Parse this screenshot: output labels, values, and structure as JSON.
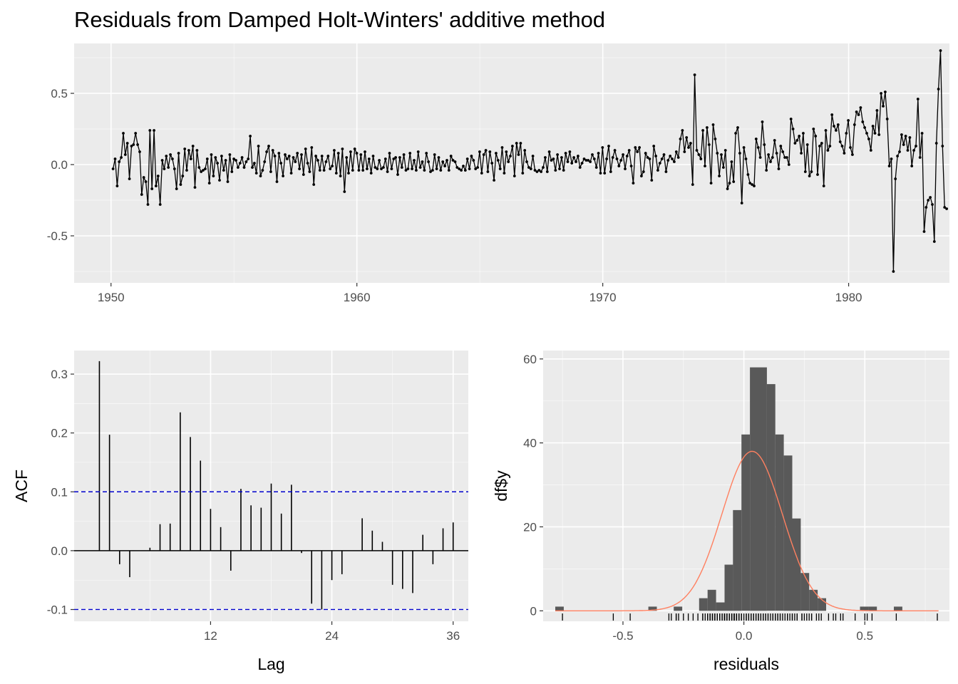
{
  "title": "Residuals from Damped Holt-Winters' additive method",
  "chart_data": [
    {
      "type": "line",
      "title": "Residuals from Damped Holt-Winters' additive method",
      "xlabel": "",
      "ylabel": "",
      "x_start": 1950.083,
      "x_step": 0.0833,
      "xlim": [
        1948.5,
        1984.1
      ],
      "ylim": [
        -0.83,
        0.85
      ],
      "x_ticks": [
        1950,
        1960,
        1970,
        1980
      ],
      "x_tick_labels": [
        "1950",
        "1960",
        "1970",
        "1980"
      ],
      "y_ticks": [
        -0.5,
        0,
        0.5
      ],
      "y_tick_labels": [
        "-0.5",
        "0.0",
        "0.5"
      ],
      "grid": true,
      "values": [
        -0.03,
        0.04,
        -0.15,
        0.02,
        0.05,
        0.22,
        0.07,
        0.15,
        -0.1,
        0.13,
        0.14,
        0.22,
        0.14,
        0.09,
        -0.21,
        -0.09,
        -0.12,
        -0.28,
        0.24,
        -0.17,
        0.24,
        -0.15,
        -0.08,
        -0.28,
        0.03,
        -0.03,
        0.06,
        -0.02,
        0.07,
        0.04,
        -0.03,
        -0.17,
        0.08,
        -0.14,
        -0.08,
        0.11,
        -0.04,
        0.1,
        0.04,
        0.13,
        -0.16,
        0.1,
        -0.02,
        -0.05,
        -0.04,
        -0.03,
        0.04,
        -0.13,
        0.07,
        -0.08,
        0.05,
        0.01,
        -0.11,
        0.06,
        -0.04,
        0.03,
        -0.12,
        0.07,
        -0.05,
        0.04,
        0.03,
        -0.02,
        0.01,
        0.05,
        -0.02,
        0.02,
        0.04,
        0.2,
        -0.02,
        0.01,
        -0.06,
        0.13,
        -0.08,
        -0.04,
        0.02,
        0.09,
        0.13,
        -0.05,
        0.1,
        0.06,
        -0.12,
        0.08,
        0.01,
        -0.08,
        0.07,
        0.04,
        0.06,
        -0.06,
        0.05,
        0.02,
        0.08,
        -0.03,
        0.07,
        -0.07,
        0.11,
        0.01,
        -0.05,
        0.12,
        -0.14,
        0.06,
        0.03,
        -0.04,
        0.06,
        -0.04,
        0.02,
        0.06,
        -0.03,
        -0.01,
        0.1,
        -0.06,
        0.08,
        -0.08,
        0.11,
        -0.19,
        0.05,
        -0.06,
        0.09,
        -0.04,
        0.11,
        0.08,
        -0.04,
        0.07,
        -0.04,
        0.09,
        -0.03,
        0.04,
        -0.06,
        0.06,
        -0.02,
        -0.03,
        0.03,
        -0.03,
        -0.02,
        0.04,
        -0.05,
        0.08,
        -0.03,
        0.04,
        0.05,
        -0.07,
        0.05,
        -0.02,
        0.07,
        -0.04,
        -0.03,
        0.08,
        -0.03,
        0.03,
        -0.04,
        0.09,
        -0.02,
        0.02,
        -0.04,
        0.08,
        0.02,
        -0.05,
        -0.04,
        0.07,
        -0.03,
        0.05,
        -0.04,
        0.02,
        -0.01,
        0.03,
        -0.04,
        0.06,
        0.03,
        0.02,
        -0.02,
        -0.03,
        -0.04,
        -0.01,
        -0.04,
        0.04,
        -0.03,
        0.06,
        0.03,
        -0.03,
        -0.02,
        0.09,
        -0.06,
        0.07,
        0.1,
        -0.05,
        0.09,
        0.01,
        -0.11,
        0.08,
        0.03,
        -0.03,
        0.12,
        -0.06,
        0.09,
        0.02,
        0.06,
        0.13,
        -0.08,
        0.15,
        0.07,
        0.15,
        -0.06,
        0.1,
        0.02,
        -0.02,
        -0.03,
        0.06,
        -0.04,
        -0.05,
        -0.04,
        -0.05,
        -0.02,
        0.05,
        -0.05,
        0.09,
        0.03,
        0.04,
        -0.04,
        0.07,
        -0.03,
        0.05,
        -0.04,
        0.08,
        0.02,
        0.09,
        0.01,
        0.05,
        0.02,
        0.06,
        -0.02,
        0.01,
        0.04,
        0.03,
        0.03,
        0.02,
        0.07,
        0.04,
        -0.02,
        0.08,
        -0.06,
        0.12,
        -0.06,
        0.04,
        0.13,
        -0.05,
        0.05,
        0.1,
        0.04,
        -0.01,
        0.03,
        0.07,
        -0.03,
        0.06,
        0.1,
        -0.01,
        -0.13,
        0.12,
        0.09,
        0.12,
        -0.08,
        -0.05,
        0.08,
        0.05,
        0.04,
        -0.11,
        0.13,
        0.06,
        -0.04,
        0.01,
        0.04,
        0.07,
        -0.05,
        0.03,
        0.06,
        0.04,
        0.02,
        0.09,
        0.05,
        0.18,
        0.24,
        0.09,
        0.19,
        0.12,
        0.15,
        -0.14,
        0.63,
        0.1,
        0.07,
        0.04,
        0.24,
        -0.01,
        0.26,
        0.14,
        -0.13,
        0.28,
        0.18,
        0.08,
        -0.08,
        0.07,
        -0.02,
        0.1,
        -0.17,
        -0.13,
        0.02,
        -0.12,
        0.22,
        0.26,
        0.08,
        -0.27,
        0.12,
        0.04,
        -0.07,
        -0.13,
        -0.14,
        -0.15,
        0.18,
        0.12,
        0.05,
        0.3,
        0.14,
        -0.04,
        0.07,
        0.02,
        0.05,
        0.17,
        0.08,
        -0.03,
        0.13,
        0.09,
        0.05,
        0.05,
        0.0,
        0.32,
        0.25,
        0.15,
        0.17,
        0.2,
        0.08,
        0.22,
        -0.05,
        0.14,
        -0.08,
        -0.05,
        0.25,
        0.2,
        -0.07,
        0.13,
        0.15,
        -0.15,
        0.24,
        0.1,
        0.13,
        0.35,
        0.27,
        0.24,
        0.28,
        0.16,
        0.13,
        0.08,
        0.22,
        0.31,
        0.12,
        0.07,
        0.28,
        0.37,
        0.35,
        0.4,
        0.3,
        0.26,
        0.22,
        0.18,
        0.1,
        0.27,
        0.22,
        0.38,
        0.21,
        0.5,
        0.41,
        0.51,
        0.32,
        -0.01,
        0.04,
        -0.75,
        -0.1,
        0.06,
        0.09,
        0.21,
        0.14,
        0.2,
        0.1,
        0.19,
        -0.01,
        0.1,
        0.13,
        0.46,
        0.05,
        0.22,
        -0.47,
        -0.3,
        -0.25,
        -0.23,
        -0.28,
        -0.54,
        0.15,
        0.53,
        0.8,
        0.13,
        -0.3,
        -0.31
      ]
    },
    {
      "type": "bar",
      "title": "",
      "xlabel": "Lag",
      "ylabel": "ACF",
      "lags": [
        1,
        2,
        3,
        4,
        5,
        6,
        7,
        8,
        9,
        10,
        11,
        12,
        13,
        14,
        15,
        16,
        17,
        18,
        19,
        20,
        21,
        22,
        23,
        24,
        25,
        26,
        27,
        28,
        29,
        30,
        31,
        32,
        33,
        34,
        35,
        36
      ],
      "values": [
        0.322,
        0.197,
        -0.023,
        -0.045,
        0.0,
        0.005,
        0.045,
        0.046,
        0.235,
        0.193,
        0.153,
        0.071,
        0.04,
        -0.034,
        0.105,
        0.077,
        0.073,
        0.114,
        0.063,
        0.112,
        -0.004,
        -0.09,
        -0.1,
        -0.05,
        -0.04,
        0.0,
        0.055,
        0.034,
        0.015,
        -0.058,
        -0.065,
        -0.072,
        0.027,
        -0.023,
        0.038,
        0.048
      ],
      "confidence_limit": 0.1,
      "xlim": [
        -1.5,
        37.5
      ],
      "ylim": [
        -0.12,
        0.34
      ],
      "x_ticks": [
        12,
        24,
        36
      ],
      "x_tick_labels": [
        "12",
        "24",
        "36"
      ],
      "y_ticks": [
        -0.1,
        0.0,
        0.1,
        0.2,
        0.3
      ],
      "y_tick_labels": [
        "-0.1",
        "0.0",
        "0.1",
        "0.2",
        "0.3"
      ],
      "grid": true
    },
    {
      "type": "bar",
      "title": "",
      "xlabel": "residuals",
      "ylabel": "df$y",
      "bin_start": -0.78,
      "bin_width": 0.035,
      "values": [
        1,
        0,
        0,
        0,
        0,
        0,
        0,
        0,
        0,
        0,
        0,
        1,
        0,
        0,
        1,
        0,
        0,
        3,
        5,
        2,
        11,
        24,
        42,
        58,
        58,
        54,
        42,
        37,
        22,
        9,
        5,
        3,
        0,
        0,
        0,
        0,
        1,
        1,
        0,
        0,
        1,
        0,
        0,
        0,
        0,
        0,
        0,
        0,
        0,
        0,
        0,
        0,
        0,
        0,
        0,
        0,
        0,
        1
      ],
      "density_curve": {
        "mean": 0.034,
        "sd": 0.125,
        "peak": 38
      },
      "rug_values": [
        -0.75,
        -0.54,
        -0.47,
        -0.31,
        -0.3,
        -0.28,
        -0.28,
        -0.27,
        -0.25,
        -0.23,
        -0.21,
        -0.19,
        -0.17,
        -0.17,
        -0.16,
        -0.15,
        -0.15,
        -0.15,
        -0.14,
        -0.14,
        -0.14,
        -0.13,
        -0.13,
        -0.13,
        -0.12,
        -0.12,
        -0.12,
        -0.11,
        -0.11,
        -0.1,
        -0.1,
        -0.1,
        -0.09,
        -0.09,
        -0.08,
        -0.08,
        -0.08,
        -0.08,
        -0.08,
        -0.07,
        -0.07,
        -0.07,
        -0.06,
        -0.06,
        -0.06,
        -0.05,
        -0.05,
        -0.05,
        -0.05,
        -0.04,
        -0.04,
        -0.04,
        -0.04,
        -0.03,
        -0.03,
        -0.03,
        -0.03,
        -0.02,
        -0.02,
        -0.02,
        -0.01,
        -0.01,
        0.0,
        0.01,
        0.01,
        0.02,
        0.02,
        0.03,
        0.03,
        0.04,
        0.04,
        0.05,
        0.05,
        0.06,
        0.06,
        0.07,
        0.07,
        0.08,
        0.08,
        0.09,
        0.09,
        0.1,
        0.1,
        0.11,
        0.12,
        0.12,
        0.13,
        0.13,
        0.14,
        0.14,
        0.15,
        0.15,
        0.16,
        0.17,
        0.18,
        0.18,
        0.19,
        0.2,
        0.2,
        0.21,
        0.22,
        0.22,
        0.24,
        0.24,
        0.25,
        0.26,
        0.27,
        0.28,
        0.28,
        0.3,
        0.31,
        0.32,
        0.35,
        0.37,
        0.38,
        0.4,
        0.41,
        0.46,
        0.5,
        0.51,
        0.53,
        0.63,
        0.8
      ],
      "xlim": [
        -0.83,
        0.85
      ],
      "ylim": [
        -2.5,
        62
      ],
      "x_ticks": [
        -0.5,
        0.0,
        0.5
      ],
      "x_tick_labels": [
        "-0.5",
        "0.0",
        "0.5"
      ],
      "y_ticks": [
        0,
        20,
        40,
        60
      ],
      "y_tick_labels": [
        "0",
        "20",
        "40",
        "60"
      ],
      "grid": true
    }
  ],
  "colors": {
    "panel": "#EBEBEB",
    "grid_major": "#FFFFFF",
    "line": "#000000",
    "bars": "#595959",
    "ci_dash": "#0000CC",
    "density": "#FF8060",
    "tick_text": "#4D4D4D"
  }
}
